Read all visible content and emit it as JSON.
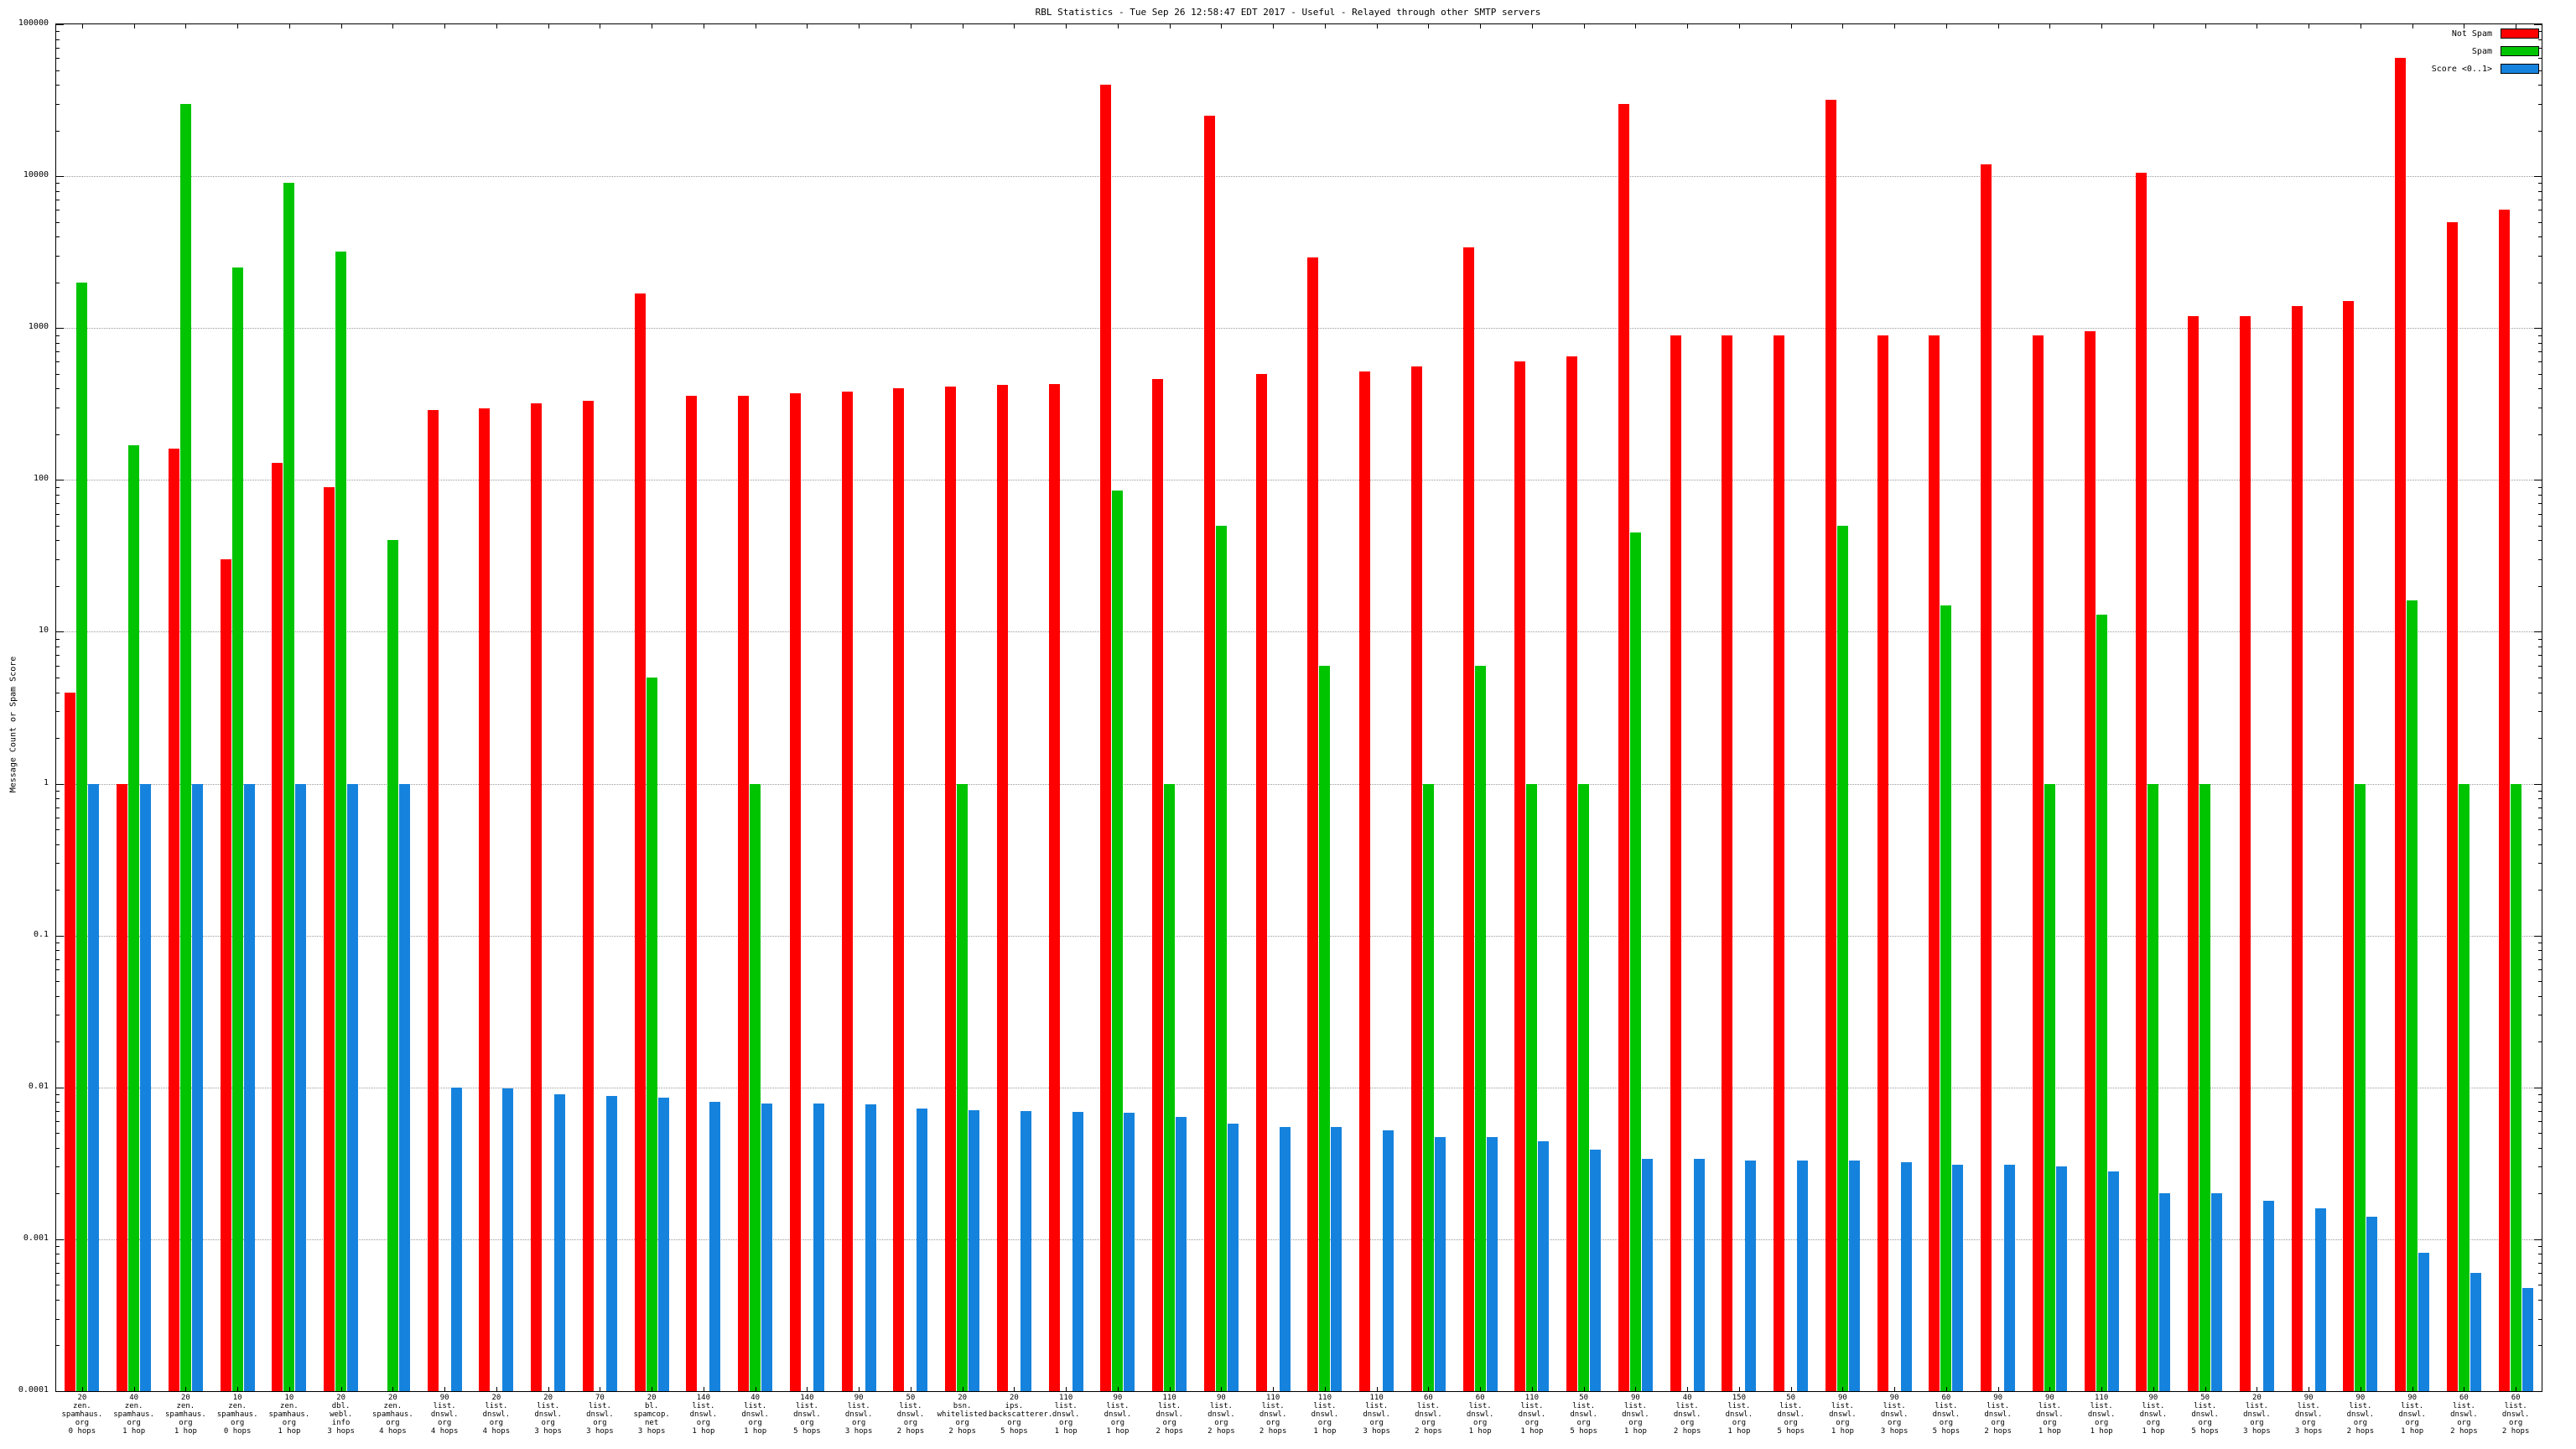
{
  "chart_data": {
    "type": "bar",
    "title": "RBL Statistics - Tue Sep 26 12:58:47 EDT 2017 - Useful - Relayed through other SMTP servers",
    "xlabel": "",
    "ylabel": "Message Count or Spam Score",
    "y_scale": "log",
    "ylim": [
      0.0001,
      100000
    ],
    "grid": true,
    "legend_position": "top-right",
    "yticks": [
      "100000",
      "10000",
      "1000",
      "100",
      "10",
      "1",
      "0.1",
      "0.01",
      "0.001",
      "0.0001"
    ],
    "legend": [
      {
        "label": "Not Spam",
        "color": "#ff0000"
      },
      {
        "label": "Spam",
        "color": "#00c400"
      },
      {
        "label": "Score <0..1>",
        "color": "#1583dd"
      }
    ],
    "series_keys": [
      "not_spam",
      "spam",
      "score"
    ],
    "groups": [
      {
        "label": [
          "20",
          "zen.",
          "spamhaus.",
          "org",
          "0 hops"
        ],
        "not_spam": 4,
        "spam": 2000,
        "score": 1
      },
      {
        "label": [
          "40",
          "zen.",
          "spamhaus.",
          "org",
          "1 hop"
        ],
        "not_spam": 1,
        "spam": 170,
        "score": 1
      },
      {
        "label": [
          "20",
          "zen.",
          "spamhaus.",
          "org",
          "1 hop"
        ],
        "not_spam": 160,
        "spam": 30000,
        "score": 1
      },
      {
        "label": [
          "10",
          "zen.",
          "spamhaus.",
          "org",
          "0 hops"
        ],
        "not_spam": 30,
        "spam": 2500,
        "score": 1
      },
      {
        "label": [
          "10",
          "zen.",
          "spamhaus.",
          "org",
          "1 hop"
        ],
        "not_spam": 130,
        "spam": 9000,
        "score": 1
      },
      {
        "label": [
          "20",
          "dbl.",
          "webl.",
          "info",
          "3 hops"
        ],
        "not_spam": 90,
        "spam": 3200,
        "score": 1
      },
      {
        "label": [
          "20",
          "zen.",
          "spamhaus.",
          "org",
          "4 hops"
        ],
        "not_spam": null,
        "spam": 40,
        "score": 1
      },
      {
        "label": [
          "90",
          "list.",
          "dnswl.",
          "org",
          "4 hops"
        ],
        "not_spam": 290,
        "spam": null,
        "score": 0.01
      },
      {
        "label": [
          "20",
          "list.",
          "dnswl.",
          "org",
          "4 hops"
        ],
        "not_spam": 295,
        "spam": null,
        "score": 0.0098
      },
      {
        "label": [
          "20",
          "list.",
          "dnswl.",
          "org",
          "3 hops"
        ],
        "not_spam": 320,
        "spam": null,
        "score": 0.009
      },
      {
        "label": [
          "70",
          "list.",
          "dnswl.",
          "org",
          "3 hops"
        ],
        "not_spam": 330,
        "spam": null,
        "score": 0.0088
      },
      {
        "label": [
          "20",
          "bl.",
          "spamcop.",
          "net",
          "3 hops"
        ],
        "not_spam": 1700,
        "spam": 5,
        "score": 0.0086
      },
      {
        "label": [
          "140",
          "list.",
          "dnswl.",
          "org",
          "1 hop"
        ],
        "not_spam": 360,
        "spam": null,
        "score": 0.008
      },
      {
        "label": [
          "40",
          "list.",
          "dnswl.",
          "org",
          "1 hop"
        ],
        "not_spam": 360,
        "spam": 1,
        "score": 0.0078
      },
      {
        "label": [
          "140",
          "list.",
          "dnswl.",
          "org",
          "5 hops"
        ],
        "not_spam": 370,
        "spam": null,
        "score": 0.0078
      },
      {
        "label": [
          "90",
          "list.",
          "dnswl.",
          "org",
          "3 hops"
        ],
        "not_spam": 380,
        "spam": null,
        "score": 0.0077
      },
      {
        "label": [
          "50",
          "list.",
          "dnswl.",
          "org",
          "2 hops"
        ],
        "not_spam": 400,
        "spam": null,
        "score": 0.0073
      },
      {
        "label": [
          "20",
          "bsn.",
          "whitelisted.",
          "org",
          "2 hops"
        ],
        "not_spam": 410,
        "spam": 1,
        "score": 0.0071
      },
      {
        "label": [
          "20",
          "ips.",
          "backscatterer.",
          "org",
          "5 hops"
        ],
        "not_spam": 420,
        "spam": null,
        "score": 0.007
      },
      {
        "label": [
          "110",
          "list.",
          "dnswl.",
          "org",
          "1 hop"
        ],
        "not_spam": 430,
        "spam": null,
        "score": 0.0069
      },
      {
        "label": [
          "90",
          "list.",
          "dnswl.",
          "org",
          "1 hop"
        ],
        "not_spam": 40000,
        "spam": 85,
        "score": 0.0068
      },
      {
        "label": [
          "110",
          "list.",
          "dnswl.",
          "org",
          "2 hops"
        ],
        "not_spam": 460,
        "spam": 1,
        "score": 0.0064
      },
      {
        "label": [
          "90",
          "list.",
          "dnswl.",
          "org",
          "2 hops"
        ],
        "not_spam": 25000,
        "spam": 50,
        "score": 0.0058
      },
      {
        "label": [
          "110",
          "list.",
          "dnswl.",
          "org",
          "2 hops"
        ],
        "not_spam": 500,
        "spam": null,
        "score": 0.0055
      },
      {
        "label": [
          "110",
          "list.",
          "dnswl.",
          "org",
          "1 hop"
        ],
        "not_spam": 2900,
        "spam": 6,
        "score": 0.0055
      },
      {
        "label": [
          "110",
          "list.",
          "dnswl.",
          "org",
          "3 hops"
        ],
        "not_spam": 520,
        "spam": null,
        "score": 0.0052
      },
      {
        "label": [
          "60",
          "list.",
          "dnswl.",
          "org",
          "2 hops"
        ],
        "not_spam": 560,
        "spam": 1,
        "score": 0.0047
      },
      {
        "label": [
          "60",
          "list.",
          "dnswl.",
          "org",
          "1 hop"
        ],
        "not_spam": 3400,
        "spam": 6,
        "score": 0.0047
      },
      {
        "label": [
          "110",
          "list.",
          "dnswl.",
          "org",
          "1 hop"
        ],
        "not_spam": 600,
        "spam": 1,
        "score": 0.0044
      },
      {
        "label": [
          "50",
          "list.",
          "dnswl.",
          "org",
          "5 hops"
        ],
        "not_spam": 650,
        "spam": 1,
        "score": 0.0039
      },
      {
        "label": [
          "90",
          "list.",
          "dnswl.",
          "org",
          "1 hop"
        ],
        "not_spam": 30000,
        "spam": 45,
        "score": 0.0034
      },
      {
        "label": [
          "40",
          "list.",
          "dnswl.",
          "org",
          "2 hops"
        ],
        "not_spam": 900,
        "spam": null,
        "score": 0.0034
      },
      {
        "label": [
          "150",
          "list.",
          "dnswl.",
          "org",
          "1 hop"
        ],
        "not_spam": 900,
        "spam": null,
        "score": 0.0033
      },
      {
        "label": [
          "50",
          "list.",
          "dnswl.",
          "org",
          "5 hops"
        ],
        "not_spam": 900,
        "spam": null,
        "score": 0.0033
      },
      {
        "label": [
          "90",
          "list.",
          "dnswl.",
          "org",
          "1 hop"
        ],
        "not_spam": 32000,
        "spam": 50,
        "score": 0.0033
      },
      {
        "label": [
          "90",
          "list.",
          "dnswl.",
          "org",
          "3 hops"
        ],
        "not_spam": 900,
        "spam": null,
        "score": 0.0032
      },
      {
        "label": [
          "60",
          "list.",
          "dnswl.",
          "org",
          "5 hops"
        ],
        "not_spam": 900,
        "spam": 15,
        "score": 0.0031
      },
      {
        "label": [
          "90",
          "list.",
          "dnswl.",
          "org",
          "2 hops"
        ],
        "not_spam": 12000,
        "spam": null,
        "score": 0.0031
      },
      {
        "label": [
          "90",
          "list.",
          "dnswl.",
          "org",
          "1 hop"
        ],
        "not_spam": 900,
        "spam": 1,
        "score": 0.003
      },
      {
        "label": [
          "110",
          "list.",
          "dnswl.",
          "org",
          "1 hop"
        ],
        "not_spam": 950,
        "spam": 13,
        "score": 0.0028
      },
      {
        "label": [
          "90",
          "list.",
          "dnswl.",
          "org",
          "1 hop"
        ],
        "not_spam": 10500,
        "spam": 1,
        "score": 0.002
      },
      {
        "label": [
          "50",
          "list.",
          "dnswl.",
          "org",
          "5 hops"
        ],
        "not_spam": 1200,
        "spam": 1,
        "score": 0.002
      },
      {
        "label": [
          "20",
          "list.",
          "dnswl.",
          "org",
          "3 hops"
        ],
        "not_spam": 1200,
        "spam": null,
        "score": 0.0018
      },
      {
        "label": [
          "90",
          "list.",
          "dnswl.",
          "org",
          "3 hops"
        ],
        "not_spam": 1400,
        "spam": null,
        "score": 0.0016
      },
      {
        "label": [
          "90",
          "list.",
          "dnswl.",
          "org",
          "2 hops"
        ],
        "not_spam": 1500,
        "spam": 1,
        "score": 0.0014
      },
      {
        "label": [
          "90",
          "list.",
          "dnswl.",
          "org",
          "1 hop"
        ],
        "not_spam": 60000,
        "spam": 16,
        "score": 0.00082
      },
      {
        "label": [
          "60",
          "list.",
          "dnswl.",
          "org",
          "2 hops"
        ],
        "not_spam": 5000,
        "spam": 1,
        "score": 0.0006
      },
      {
        "label": [
          "60",
          "list.",
          "dnswl.",
          "org",
          "2 hops"
        ],
        "not_spam": 6000,
        "spam": 1,
        "score": 0.00048
      }
    ]
  }
}
